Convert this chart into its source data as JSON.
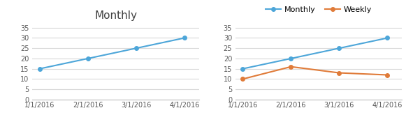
{
  "dates": [
    "1/1/2016",
    "2/1/2016",
    "3/1/2016",
    "4/1/2016"
  ],
  "monthly_values": [
    15,
    20,
    25,
    30
  ],
  "weekly_values": [
    10,
    16,
    13,
    12
  ],
  "monthly_color": "#4DA6D9",
  "weekly_color": "#E07B39",
  "ylim": [
    0,
    37
  ],
  "yticks": [
    0,
    5,
    10,
    15,
    20,
    25,
    30,
    35
  ],
  "left_title": "Monthly",
  "legend_monthly": "Monthly",
  "legend_weekly": "Weekly",
  "bg_color": "#FFFFFF",
  "grid_color": "#D9D9D9",
  "title_fontsize": 11,
  "tick_fontsize": 7,
  "legend_fontsize": 8
}
